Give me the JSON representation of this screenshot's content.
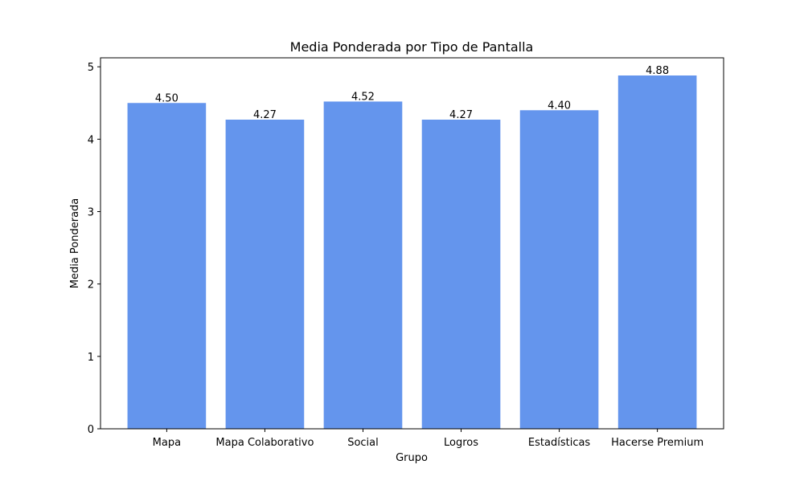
{
  "chart_data": {
    "type": "bar",
    "title": "Media Ponderada por Tipo de Pantalla",
    "xlabel": "Grupo",
    "ylabel": "Media Ponderada",
    "categories": [
      "Mapa",
      "Mapa Colaborativo",
      "Social",
      "Logros",
      "Estadísticas",
      "Hacerse Premium"
    ],
    "values": [
      4.5,
      4.27,
      4.52,
      4.27,
      4.4,
      4.88
    ],
    "value_labels": [
      "4.50",
      "4.27",
      "4.52",
      "4.27",
      "4.40",
      "4.88"
    ],
    "ylim": [
      0,
      5.124
    ],
    "yticks": [
      0,
      1,
      2,
      3,
      4,
      5
    ],
    "ytick_labels": [
      "0",
      "1",
      "2",
      "3",
      "4",
      "5"
    ],
    "bar_color": "#6495ED",
    "grid": false,
    "legend": "none"
  }
}
